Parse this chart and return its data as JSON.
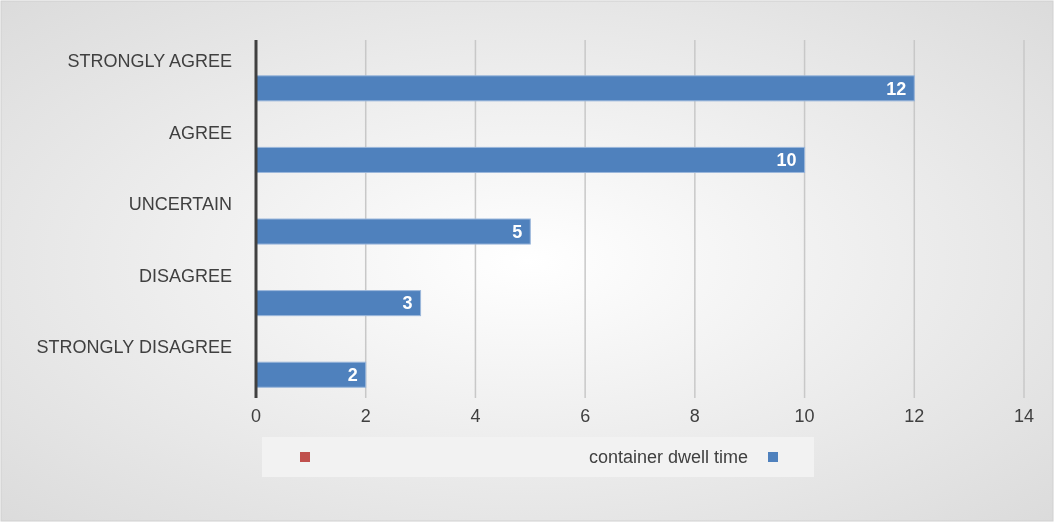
{
  "chart_data": {
    "type": "bar",
    "orientation": "horizontal",
    "categories": [
      "STRONGLY AGREE",
      "AGREE",
      "UNCERTAIN",
      "DISAGREE",
      "STRONGLY DISAGREE"
    ],
    "series": [
      {
        "color": "#c0504d",
        "values": [
          null,
          null,
          null,
          null,
          null
        ]
      },
      {
        "name": "container dwell time",
        "color": "#4f81bd",
        "values": [
          12,
          10,
          5,
          3,
          2
        ]
      }
    ],
    "xlim": [
      0,
      14
    ],
    "xticks": [
      0,
      2,
      4,
      6,
      8,
      10,
      12,
      14
    ],
    "grid": "x",
    "data_labels": true,
    "legend": "bottom"
  }
}
